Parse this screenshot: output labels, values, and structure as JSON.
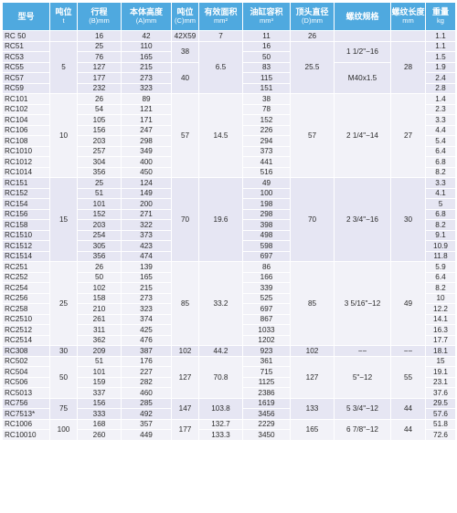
{
  "headers": [
    {
      "label": "型号",
      "unit": ""
    },
    {
      "label": "吨位",
      "unit": "t"
    },
    {
      "label": "行程",
      "unit": "(B)mm"
    },
    {
      "label": "本体高度",
      "unit": "(A)mm"
    },
    {
      "label": "吨位",
      "unit": "(C)mm"
    },
    {
      "label": "有效面积",
      "unit": "mm²"
    },
    {
      "label": "油缸容积",
      "unit": "mm³"
    },
    {
      "label": "顶头直径",
      "unit": "(D)mm"
    },
    {
      "label": "螺纹规格",
      "unit": ""
    },
    {
      "label": "螺纹长度",
      "unit": "mm"
    },
    {
      "label": "重量",
      "unit": "kg"
    }
  ],
  "colors": {
    "header_bg": "#4fa9df",
    "row_a": "#e6e6f3",
    "row_b": "#f2f2f8",
    "header_text": "#ffffff"
  },
  "groups": [
    {
      "tonnage": "5",
      "area": "6.5",
      "head_dia": "25.5",
      "thread_len": "28",
      "rows": [
        {
          "model": "RC 50",
          "stroke": "16",
          "height": "42",
          "c": "42X59",
          "area": "7",
          "vol": "11",
          "dia": "26",
          "thread": "",
          "tlen": "",
          "weight": "1.1"
        },
        {
          "model": "RC51",
          "stroke": "25",
          "height": "110",
          "vol": "16",
          "weight": "1.1"
        },
        {
          "model": "RC53",
          "stroke": "76",
          "height": "165",
          "vol": "50",
          "weight": "1.5"
        },
        {
          "model": "RC55",
          "stroke": "127",
          "height": "215",
          "vol": "83",
          "weight": "1.9"
        },
        {
          "model": "RC57",
          "stroke": "177",
          "height": "273",
          "vol": "115",
          "weight": "2.4"
        },
        {
          "model": "RC59",
          "stroke": "232",
          "height": "323",
          "vol": "151",
          "weight": "2.8"
        }
      ],
      "c_vals": [
        "38",
        "40"
      ],
      "threads": [
        "1 1/2\"−16",
        "M40x1.5"
      ]
    },
    {
      "tonnage": "10",
      "c": "57",
      "area": "14.5",
      "dia": "57",
      "thread": "2 1/4\"−14",
      "tlen": "27",
      "rows": [
        {
          "model": "RC101",
          "stroke": "26",
          "height": "89",
          "vol": "38",
          "weight": "1.4"
        },
        {
          "model": "RC102",
          "stroke": "54",
          "height": "121",
          "vol": "78",
          "weight": "2.3"
        },
        {
          "model": "RC104",
          "stroke": "105",
          "height": "171",
          "vol": "152",
          "weight": "3.3"
        },
        {
          "model": "RC106",
          "stroke": "156",
          "height": "247",
          "vol": "226",
          "weight": "4.4"
        },
        {
          "model": "RC108",
          "stroke": "203",
          "height": "298",
          "vol": "294",
          "weight": "5.4"
        },
        {
          "model": "RC1010",
          "stroke": "257",
          "height": "349",
          "vol": "373",
          "weight": "6.4"
        },
        {
          "model": "RC1012",
          "stroke": "304",
          "height": "400",
          "vol": "441",
          "weight": "6.8"
        },
        {
          "model": "RC1014",
          "stroke": "356",
          "height": "450",
          "vol": "516",
          "weight": "8.2"
        }
      ]
    },
    {
      "tonnage": "15",
      "c": "70",
      "area": "19.6",
      "dia": "70",
      "thread": "2 3/4\"−16",
      "tlen": "30",
      "rows": [
        {
          "model": "RC151",
          "stroke": "25",
          "height": "124",
          "vol": "49",
          "weight": "3.3"
        },
        {
          "model": "RC152",
          "stroke": "51",
          "height": "149",
          "vol": "100",
          "weight": "4.1"
        },
        {
          "model": "RC154",
          "stroke": "101",
          "height": "200",
          "vol": "198",
          "weight": "5"
        },
        {
          "model": "RC156",
          "stroke": "152",
          "height": "271",
          "vol": "298",
          "weight": "6.8"
        },
        {
          "model": "RC158",
          "stroke": "203",
          "height": "322",
          "vol": "398",
          "weight": "8.2"
        },
        {
          "model": "RC1510",
          "stroke": "254",
          "height": "373",
          "vol": "498",
          "weight": "9.1"
        },
        {
          "model": "RC1512",
          "stroke": "305",
          "height": "423",
          "vol": "598",
          "weight": "10.9"
        },
        {
          "model": "RC1514",
          "stroke": "356",
          "height": "474",
          "vol": "697",
          "weight": "11.8"
        }
      ]
    },
    {
      "tonnage": "25",
      "c": "85",
      "area": "33.2",
      "dia": "85",
      "thread": "3 5/16\"−12",
      "tlen": "49",
      "rows": [
        {
          "model": "RC251",
          "stroke": "26",
          "height": "139",
          "vol": "86",
          "weight": "5.9"
        },
        {
          "model": "RC252",
          "stroke": "50",
          "height": "165",
          "vol": "166",
          "weight": "6.4"
        },
        {
          "model": "RC254",
          "stroke": "102",
          "height": "215",
          "vol": "339",
          "weight": "8.2"
        },
        {
          "model": "RC256",
          "stroke": "158",
          "height": "273",
          "vol": "525",
          "weight": "10"
        },
        {
          "model": "RC258",
          "stroke": "210",
          "height": "323",
          "vol": "697",
          "weight": "12.2"
        },
        {
          "model": "RC2510",
          "stroke": "261",
          "height": "374",
          "vol": "867",
          "weight": "14.1"
        },
        {
          "model": "RC2512",
          "stroke": "311",
          "height": "425",
          "vol": "1033",
          "weight": "16.3"
        },
        {
          "model": "RC2514",
          "stroke": "362",
          "height": "476",
          "vol": "1202",
          "weight": "17.7"
        }
      ]
    },
    {
      "tonnage": "30",
      "c": "102",
      "area": "44.2",
      "dia": "102",
      "thread": "−−",
      "tlen": "−−",
      "rows": [
        {
          "model": "RC308",
          "stroke": "209",
          "height": "387",
          "vol": "923",
          "weight": "18.1"
        }
      ]
    },
    {
      "tonnage": "50",
      "c": "127",
      "area": "70.8",
      "dia": "127",
      "thread": "5\"−12",
      "tlen": "55",
      "rows": [
        {
          "model": "RC502",
          "stroke": "51",
          "height": "176",
          "vol": "361",
          "weight": "15"
        },
        {
          "model": "RC504",
          "stroke": "101",
          "height": "227",
          "vol": "715",
          "weight": "19.1"
        },
        {
          "model": "RC506",
          "stroke": "159",
          "height": "282",
          "vol": "1125",
          "weight": "23.1"
        },
        {
          "model": "RC5013",
          "stroke": "337",
          "height": "460",
          "vol": "2386",
          "weight": "37.6"
        }
      ]
    },
    {
      "tonnage": "75",
      "c": "147",
      "area": "103.8",
      "thread": "5 3/4\"−12",
      "tlen": "44",
      "rows": [
        {
          "model": "RC756",
          "stroke": "156",
          "height": "285",
          "vol": "1619",
          "dia": "",
          "weight": "29.5"
        },
        {
          "model": "RC7513*",
          "stroke": "333",
          "height": "492",
          "vol": "3456",
          "dia": "",
          "weight": "57.6"
        }
      ],
      "dia": "133"
    },
    {
      "tonnage": "100",
      "c": "177",
      "area_a": "132.7",
      "area_b": "133.3",
      "dia": "165",
      "thread": "6 7/8\"−12",
      "tlen": "44",
      "rows": [
        {
          "model": "RC1006",
          "stroke": "168",
          "height": "357",
          "vol": "2229",
          "weight": "51.8"
        },
        {
          "model": "RC10010",
          "stroke": "260",
          "height": "449",
          "vol": "3450",
          "weight": "72.6"
        }
      ]
    }
  ]
}
